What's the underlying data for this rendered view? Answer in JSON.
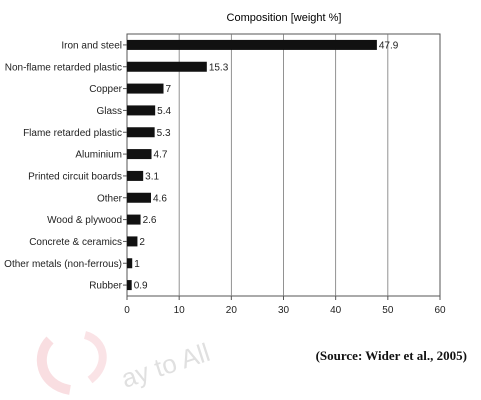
{
  "chart_data": {
    "type": "bar",
    "orientation": "horizontal",
    "title": "Composition [weight %]",
    "xlabel": "",
    "ylabel": "",
    "xlim": [
      0,
      60
    ],
    "x_ticks": [
      "0",
      "10",
      "20",
      "30",
      "40",
      "50",
      "60"
    ],
    "grid": true,
    "categories": [
      "Iron and steel",
      "Non-flame retarded plastic",
      "Copper",
      "Glass",
      "Flame retarded plastic",
      "Aluminium",
      "Printed circuit boards",
      "Other",
      "Wood & plywood",
      "Concrete & ceramics",
      "Other metals (non-ferrous)",
      "Rubber"
    ],
    "values": [
      47.9,
      15.3,
      7,
      5.4,
      5.3,
      4.7,
      3.1,
      4.6,
      2.6,
      2,
      1,
      0.9
    ],
    "value_labels": [
      "47.9",
      "15.3",
      "7",
      "5.4",
      "5.3",
      "4.7",
      "3.1",
      "4.6",
      "2.6",
      "2",
      "1",
      "0.9"
    ],
    "bar_color": "#111111"
  },
  "source": "(Source: Wider et al., 2005)",
  "watermark": "ay to All"
}
